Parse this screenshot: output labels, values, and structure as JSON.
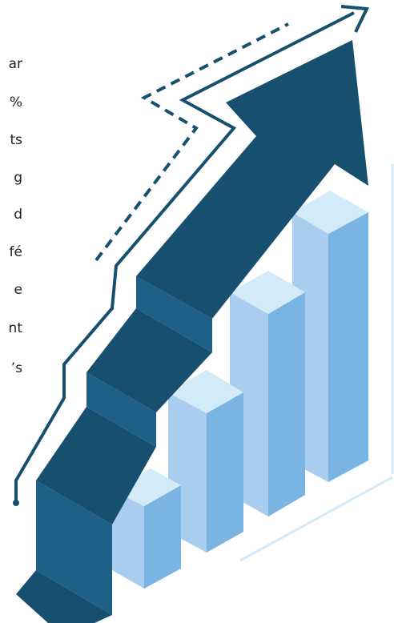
{
  "text_fragments": [
    "ar",
    "%",
    "ts",
    "g",
    "d",
    "fé",
    "e",
    "nt",
    "’s"
  ]
}
